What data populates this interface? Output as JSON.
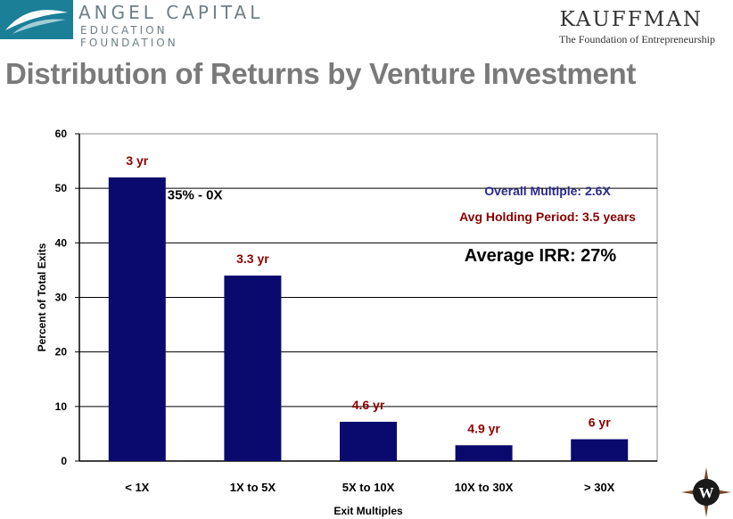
{
  "header": {
    "left_logo_name": "ANGEL CAPITAL",
    "left_logo_sub": "EDUCATION FOUNDATION",
    "right_logo_name": "KAUFFMAN",
    "right_logo_sub": "The Foundation of Entrepreneurship",
    "compass_letter": "W"
  },
  "title": "Distribution of Returns by Venture Investment",
  "colors": {
    "bar": "#0a0a6e",
    "year_label": "#8b0000",
    "multiple_note": "#2b2b8f",
    "holding_note": "#8b0000",
    "title": "#7a7a7a"
  },
  "chart_data": {
    "type": "bar",
    "categories": [
      "< 1X",
      "1X to 5X",
      "5X to 10X",
      "10X to 30X",
      "> 30X"
    ],
    "values": [
      52,
      34,
      7.2,
      2.9,
      4
    ],
    "bar_labels": [
      "3 yr",
      "3.3 yr",
      "4.6 yr",
      "4.9 yr",
      "6 yr"
    ],
    "xlabel": "Exit Multiples",
    "ylabel": "Percent of Total Exits",
    "ylim": [
      0,
      60
    ],
    "yticks": [
      0,
      10,
      20,
      30,
      40,
      50,
      60
    ],
    "grid": true,
    "annotations": {
      "first_bar_note": "35% - 0X",
      "overall_multiple": "Overall Multiple:  2.6X",
      "holding_period": "Avg Holding Period: 3.5 years",
      "average_irr": "Average IRR:  27%"
    }
  }
}
